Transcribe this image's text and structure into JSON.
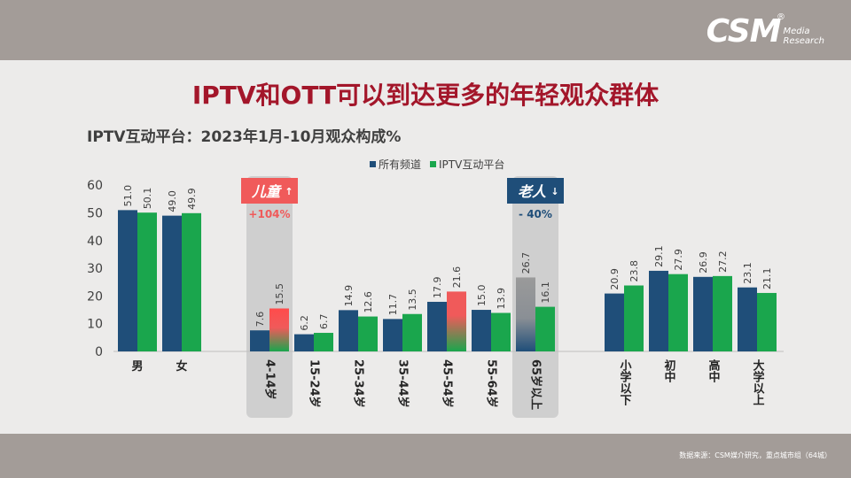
{
  "header": {
    "logo_main": "CSM",
    "logo_sub_1": "Media",
    "logo_sub_2": "Research",
    "logo_reg": "®"
  },
  "title": "IPTV和OTT可以到达更多的年轻观众群体",
  "subtitle": "IPTV互动平台：2023年1月-10月观众构成%",
  "footer": {
    "source": "数据来源：CSM媒介研究，重点城市组（64城）"
  },
  "colors": {
    "all_channels": "#1f4e79",
    "iptv": "#1aa64d",
    "child_badge": "#f05a5a",
    "elder_badge": "#1f4e79",
    "highlight_band": "#cfcfcf",
    "title": "#a3162a"
  },
  "chart_data": {
    "type": "bar",
    "categories": [
      "男",
      "女",
      "4-14岁",
      "15-24岁",
      "25-34岁",
      "35-44岁",
      "45-54岁",
      "55-64岁",
      "65岁以上",
      "小学以下",
      "初中",
      "高中",
      "大学以上"
    ],
    "series": [
      {
        "name": "所有频道",
        "values": [
          51.0,
          49.0,
          7.6,
          6.2,
          14.9,
          11.7,
          17.9,
          15.0,
          26.7,
          20.9,
          29.1,
          26.9,
          23.1
        ]
      },
      {
        "name": "IPTV互动平台",
        "values": [
          50.1,
          49.9,
          15.5,
          6.7,
          12.6,
          13.5,
          21.6,
          13.9,
          16.1,
          23.8,
          27.9,
          27.2,
          21.1
        ]
      }
    ],
    "value_labels": [
      [
        "51.0",
        "49.0",
        "7.6",
        "6.2",
        "14.9",
        "11.7",
        "17.9",
        "15.0",
        "26.7",
        "20.9",
        "29.1",
        "26.9",
        "23.1"
      ],
      [
        "50.1",
        "49.9",
        "15.5",
        "6.7",
        "12.6",
        "13.5",
        "21.6",
        "13.9",
        "16.1",
        "23.8",
        "27.9",
        "27.2",
        "21.1"
      ]
    ],
    "yticks": [
      "0",
      "10",
      "20",
      "30",
      "40",
      "50",
      "60"
    ],
    "ylim": [
      0,
      60
    ],
    "legend_position": "top-center",
    "grid": false,
    "annotations": [
      {
        "category": "4-14岁",
        "badge": "儿童",
        "arrow": "↑",
        "change": "+104%"
      },
      {
        "category": "65岁以上",
        "badge": "老人",
        "arrow": "↓",
        "change": "- 40%"
      }
    ]
  }
}
